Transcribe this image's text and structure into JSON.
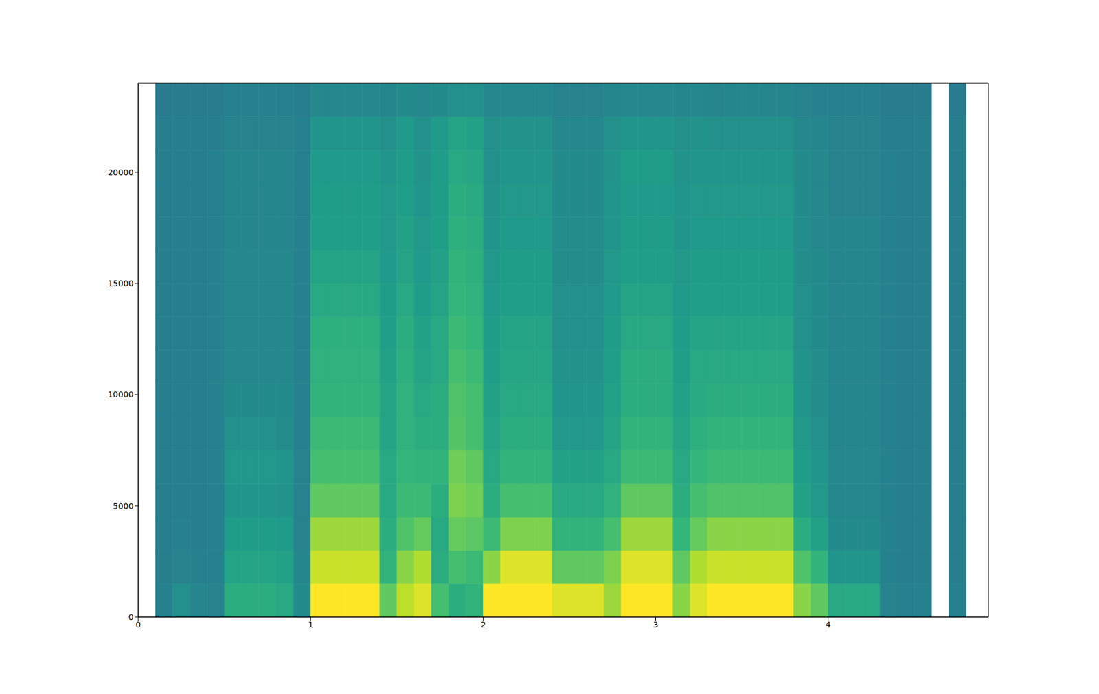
{
  "chart_data": {
    "type": "heatmap",
    "xlim": [
      0,
      4.93
    ],
    "xticks": [
      0,
      1,
      2,
      3,
      4
    ],
    "ylim": [
      0,
      24000
    ],
    "yticks": [
      0,
      5000,
      10000,
      15000,
      20000
    ],
    "zlim": [
      0,
      100
    ],
    "x_bins": [
      0,
      0.1,
      0.2,
      0.3,
      0.4,
      0.5,
      0.6,
      0.7,
      0.8,
      0.9,
      1.0,
      1.1,
      1.2,
      1.3,
      1.4,
      1.5,
      1.6,
      1.7,
      1.8,
      1.9,
      2.0,
      2.1,
      2.2,
      2.3,
      2.4,
      2.5,
      2.6,
      2.7,
      2.8,
      2.9,
      3.0,
      3.1,
      3.2,
      3.3,
      3.4,
      3.5,
      3.6,
      3.7,
      3.8,
      3.9,
      4.0,
      4.1,
      4.2,
      4.3,
      4.4,
      4.5,
      4.6,
      4.7,
      4.8,
      4.93
    ],
    "y_bins": [
      0,
      1500,
      3000,
      4500,
      6000,
      7500,
      9000,
      10500,
      12000,
      13500,
      15000,
      16500,
      18000,
      19500,
      21000,
      22500,
      24000
    ],
    "values": [
      null,
      [
        44,
        43,
        43,
        43,
        43,
        43,
        43,
        43,
        43,
        43,
        43,
        43,
        43,
        43,
        43,
        42
      ],
      [
        50,
        45,
        44,
        43,
        43,
        43,
        43,
        43,
        43,
        43,
        43,
        43,
        43,
        43,
        43,
        42
      ],
      [
        46,
        44,
        43,
        43,
        43,
        43,
        43,
        43,
        43,
        43,
        43,
        43,
        43,
        43,
        43,
        42
      ],
      [
        45,
        44,
        44,
        44,
        44,
        44,
        44,
        44,
        44,
        44,
        44,
        44,
        44,
        44,
        43,
        42
      ],
      [
        62,
        58,
        55,
        52,
        53,
        50,
        48,
        47,
        47,
        47,
        47,
        46,
        46,
        46,
        45,
        44
      ],
      [
        62,
        58,
        55,
        52,
        53,
        50,
        48,
        47,
        47,
        47,
        47,
        46,
        46,
        46,
        45,
        44
      ],
      [
        62,
        58,
        55,
        52,
        53,
        50,
        48,
        47,
        47,
        47,
        47,
        46,
        46,
        46,
        45,
        44
      ],
      [
        60,
        57,
        54,
        51,
        52,
        49,
        48,
        47,
        47,
        47,
        47,
        46,
        46,
        46,
        45,
        44
      ],
      [
        48,
        46,
        45,
        45,
        45,
        44,
        44,
        44,
        44,
        44,
        44,
        44,
        44,
        44,
        44,
        43
      ],
      [
        100,
        92,
        85,
        75,
        70,
        68,
        65,
        64,
        63,
        60,
        58,
        56,
        55,
        54,
        52,
        47
      ],
      [
        100,
        92,
        85,
        75,
        70,
        68,
        65,
        64,
        63,
        60,
        58,
        56,
        55,
        54,
        52,
        47
      ],
      [
        100,
        92,
        85,
        75,
        70,
        68,
        65,
        64,
        63,
        60,
        58,
        56,
        55,
        54,
        52,
        47
      ],
      [
        100,
        92,
        85,
        75,
        70,
        68,
        65,
        64,
        63,
        60,
        58,
        56,
        55,
        54,
        52,
        47
      ],
      [
        75,
        65,
        62,
        60,
        60,
        58,
        58,
        57,
        56,
        55,
        54,
        53,
        53,
        52,
        50,
        46
      ],
      [
        90,
        82,
        72,
        68,
        66,
        64,
        64,
        63,
        62,
        60,
        58,
        57,
        56,
        55,
        54,
        48
      ],
      [
        95,
        88,
        76,
        68,
        65,
        62,
        60,
        58,
        57,
        55,
        54,
        53,
        52,
        51,
        50,
        47
      ],
      [
        70,
        62,
        60,
        62,
        65,
        62,
        62,
        60,
        60,
        58,
        57,
        56,
        55,
        55,
        54,
        48
      ],
      [
        62,
        70,
        76,
        80,
        78,
        73,
        72,
        70,
        68,
        66,
        65,
        63,
        62,
        60,
        58,
        50
      ],
      [
        65,
        68,
        74,
        78,
        75,
        70,
        70,
        68,
        66,
        64,
        63,
        62,
        61,
        59,
        57,
        50
      ],
      [
        100,
        82,
        68,
        62,
        60,
        58,
        57,
        56,
        55,
        54,
        53,
        52,
        51,
        50,
        50,
        47
      ],
      [
        100,
        95,
        80,
        70,
        65,
        62,
        60,
        59,
        58,
        56,
        55,
        54,
        53,
        52,
        51,
        47
      ],
      [
        100,
        95,
        80,
        70,
        65,
        62,
        60,
        59,
        58,
        56,
        55,
        54,
        53,
        52,
        51,
        47
      ],
      [
        100,
        95,
        80,
        70,
        65,
        62,
        60,
        59,
        58,
        56,
        55,
        54,
        53,
        52,
        51,
        47
      ],
      [
        95,
        75,
        65,
        60,
        57,
        53,
        52,
        51,
        50,
        50,
        49,
        49,
        48,
        48,
        47,
        45
      ],
      [
        95,
        75,
        65,
        60,
        57,
        53,
        52,
        51,
        50,
        50,
        49,
        49,
        48,
        48,
        47,
        45
      ],
      [
        95,
        75,
        65,
        60,
        57,
        53,
        52,
        51,
        50,
        50,
        49,
        49,
        48,
        48,
        47,
        45
      ],
      [
        85,
        80,
        70,
        64,
        60,
        58,
        57,
        56,
        55,
        54,
        53,
        52,
        52,
        51,
        50,
        46
      ],
      [
        100,
        95,
        85,
        75,
        68,
        65,
        62,
        62,
        60,
        58,
        56,
        55,
        54,
        55,
        52,
        47
      ],
      [
        100,
        95,
        85,
        75,
        68,
        65,
        62,
        62,
        60,
        58,
        56,
        55,
        54,
        55,
        52,
        47
      ],
      [
        100,
        95,
        85,
        75,
        68,
        65,
        62,
        62,
        60,
        58,
        56,
        55,
        54,
        55,
        52,
        47
      ],
      [
        82,
        75,
        66,
        62,
        60,
        58,
        57,
        56,
        55,
        54,
        53,
        52,
        52,
        51,
        50,
        46
      ],
      [
        95,
        88,
        76,
        70,
        66,
        63,
        61,
        60,
        58,
        56,
        55,
        54,
        53,
        52,
        51,
        47
      ],
      [
        100,
        92,
        82,
        72,
        68,
        65,
        62,
        60,
        58,
        56,
        55,
        54,
        53,
        52,
        50,
        46
      ],
      [
        100,
        92,
        82,
        72,
        68,
        65,
        62,
        60,
        58,
        56,
        55,
        54,
        53,
        52,
        50,
        46
      ],
      [
        100,
        92,
        82,
        72,
        68,
        65,
        62,
        60,
        58,
        56,
        55,
        54,
        53,
        52,
        50,
        46
      ],
      [
        100,
        92,
        82,
        72,
        68,
        65,
        62,
        60,
        58,
        56,
        55,
        54,
        53,
        52,
        50,
        46
      ],
      [
        100,
        92,
        82,
        72,
        68,
        65,
        62,
        60,
        58,
        56,
        55,
        54,
        53,
        52,
        50,
        46
      ],
      [
        82,
        72,
        62,
        57,
        55,
        53,
        52,
        51,
        50,
        50,
        49,
        49,
        48,
        48,
        47,
        45
      ],
      [
        75,
        65,
        57,
        53,
        52,
        50,
        49,
        49,
        48,
        48,
        48,
        47,
        47,
        47,
        46,
        44
      ],
      [
        60,
        52,
        48,
        47,
        47,
        46,
        46,
        46,
        46,
        46,
        46,
        46,
        45,
        45,
        45,
        44
      ],
      [
        60,
        52,
        48,
        47,
        47,
        46,
        46,
        46,
        46,
        46,
        46,
        46,
        45,
        45,
        45,
        44
      ],
      [
        60,
        52,
        48,
        47,
        47,
        46,
        46,
        46,
        46,
        46,
        46,
        46,
        45,
        45,
        45,
        44
      ],
      [
        45,
        44,
        44,
        44,
        44,
        44,
        44,
        44,
        44,
        44,
        44,
        44,
        44,
        44,
        43,
        42
      ],
      [
        44,
        43,
        43,
        43,
        43,
        43,
        43,
        43,
        43,
        43,
        43,
        43,
        43,
        43,
        43,
        42
      ],
      [
        44,
        43,
        43,
        43,
        43,
        43,
        43,
        43,
        43,
        43,
        43,
        43,
        43,
        43,
        43,
        42
      ],
      null,
      [
        44,
        43,
        43,
        43,
        43,
        43,
        43,
        43,
        43,
        43,
        43,
        43,
        43,
        43,
        43,
        42
      ],
      null
    ]
  }
}
